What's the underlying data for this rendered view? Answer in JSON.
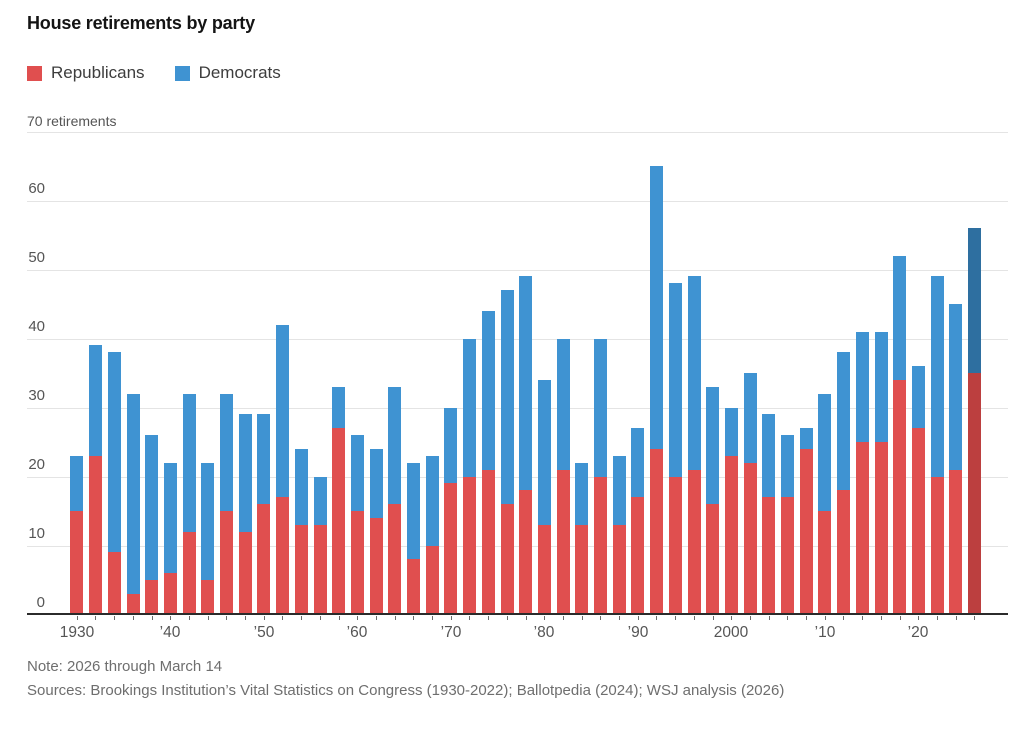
{
  "header": {
    "title": "House retirements by party"
  },
  "legend": [
    {
      "label": "Republicans",
      "color": "#e04f4f"
    },
    {
      "label": "Democrats",
      "color": "#3f93d2"
    }
  ],
  "footer": {
    "note": "Note: 2026 through March 14",
    "sources": "Sources: Brookings Institution’s Vital Statistics on Congress (1930-2022); Ballotpedia (2024); WSJ analysis (2026)"
  },
  "chart_data": {
    "type": "bar",
    "stacked": true,
    "title": "House retirements by party",
    "y_unit_label": "70 retirements",
    "ylabel": "retirements",
    "xlabel": "",
    "ylim": [
      0,
      70
    ],
    "ytick_step": 10,
    "grid": true,
    "legend_position": "top",
    "x": [
      1930,
      1932,
      1934,
      1936,
      1938,
      1940,
      1942,
      1944,
      1946,
      1948,
      1950,
      1952,
      1954,
      1956,
      1958,
      1960,
      1962,
      1964,
      1966,
      1968,
      1970,
      1972,
      1974,
      1976,
      1978,
      1980,
      1982,
      1984,
      1986,
      1988,
      1990,
      1992,
      1994,
      1996,
      1998,
      2000,
      2002,
      2004,
      2006,
      2008,
      2010,
      2012,
      2014,
      2016,
      2018,
      2020,
      2022,
      2024,
      2026
    ],
    "series": [
      {
        "name": "Republicans",
        "color": "#e04f4f",
        "highlight_color": "#bc3f3f",
        "values": [
          15,
          23,
          9,
          3,
          5,
          6,
          12,
          5,
          15,
          12,
          16,
          17,
          13,
          13,
          27,
          15,
          14,
          16,
          8,
          10,
          19,
          20,
          21,
          16,
          18,
          13,
          21,
          13,
          20,
          13,
          17,
          24,
          20,
          21,
          16,
          23,
          22,
          17,
          17,
          24,
          15,
          18,
          25,
          25,
          34,
          27,
          20,
          21,
          35
        ]
      },
      {
        "name": "Democrats",
        "color": "#3f93d2",
        "highlight_color": "#2e6fa0",
        "values": [
          8,
          16,
          29,
          29,
          21,
          16,
          20,
          17,
          17,
          17,
          13,
          25,
          11,
          7,
          6,
          11,
          10,
          17,
          14,
          13,
          11,
          20,
          23,
          31,
          31,
          21,
          19,
          9,
          20,
          10,
          10,
          41,
          28,
          28,
          17,
          7,
          13,
          12,
          9,
          3,
          17,
          20,
          16,
          16,
          18,
          9,
          29,
          24,
          21
        ]
      }
    ],
    "highlight_x": 2026,
    "xtick_labels": [
      {
        "x": 1930,
        "label": "1930"
      },
      {
        "x": 1940,
        "label": "’40"
      },
      {
        "x": 1950,
        "label": "’50"
      },
      {
        "x": 1960,
        "label": "’60"
      },
      {
        "x": 1970,
        "label": "’70"
      },
      {
        "x": 1980,
        "label": "’80"
      },
      {
        "x": 1990,
        "label": "’90"
      },
      {
        "x": 2000,
        "label": "2000"
      },
      {
        "x": 2010,
        "label": "’10"
      },
      {
        "x": 2020,
        "label": "’20"
      }
    ]
  }
}
